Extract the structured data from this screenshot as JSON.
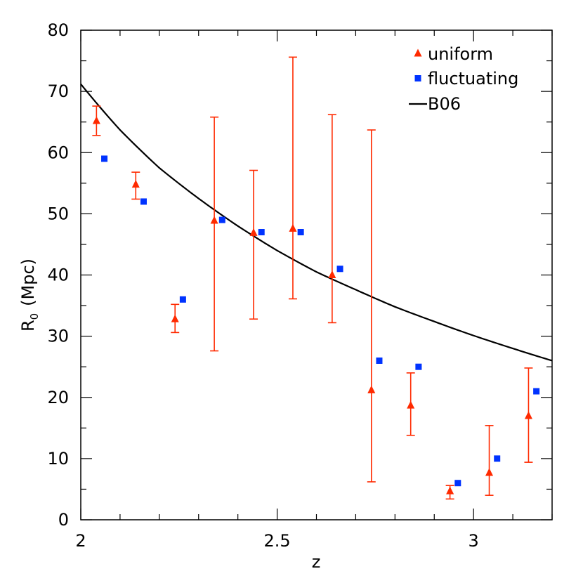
{
  "chart_data": {
    "type": "scatter",
    "title": "",
    "xlabel": "z",
    "ylabel": "R",
    "ylabel_subscript": "0",
    "ylabel_unit": "(Mpc)",
    "xlim": [
      2,
      3.2
    ],
    "ylim": [
      0,
      80
    ],
    "x_ticks": [
      {
        "value": 2,
        "label": "2"
      },
      {
        "value": 2.5,
        "label": "2.5"
      },
      {
        "value": 3,
        "label": "3"
      }
    ],
    "y_ticks": [
      {
        "value": 0,
        "label": "0"
      },
      {
        "value": 10,
        "label": "10"
      },
      {
        "value": 20,
        "label": "20"
      },
      {
        "value": 30,
        "label": "30"
      },
      {
        "value": 40,
        "label": "40"
      },
      {
        "value": 50,
        "label": "50"
      },
      {
        "value": 60,
        "label": "60"
      },
      {
        "value": 70,
        "label": "70"
      },
      {
        "value": 80,
        "label": "80"
      }
    ],
    "series": [
      {
        "name": "uniform",
        "marker": "triangle",
        "color": "#ff2a00",
        "points": [
          {
            "x": 2.04,
            "y": 65.2,
            "lo": 62.8,
            "hi": 67.6
          },
          {
            "x": 2.14,
            "y": 54.8,
            "lo": 52.4,
            "hi": 56.8
          },
          {
            "x": 2.24,
            "y": 32.8,
            "lo": 30.6,
            "hi": 35.2
          },
          {
            "x": 2.34,
            "y": 48.9,
            "lo": 27.6,
            "hi": 65.8
          },
          {
            "x": 2.44,
            "y": 46.9,
            "lo": 32.8,
            "hi": 57.1
          },
          {
            "x": 2.54,
            "y": 47.6,
            "lo": 36.1,
            "hi": 75.6
          },
          {
            "x": 2.64,
            "y": 40.0,
            "lo": 32.2,
            "hi": 66.2
          },
          {
            "x": 2.74,
            "y": 21.2,
            "lo": 6.2,
            "hi": 63.7
          },
          {
            "x": 2.84,
            "y": 18.7,
            "lo": 13.8,
            "hi": 24.0
          },
          {
            "x": 2.94,
            "y": 4.7,
            "lo": 3.4,
            "hi": 5.6
          },
          {
            "x": 3.04,
            "y": 7.7,
            "lo": 4.0,
            "hi": 15.4
          },
          {
            "x": 3.14,
            "y": 17.0,
            "lo": 9.4,
            "hi": 24.8
          }
        ]
      },
      {
        "name": "fluctuating",
        "marker": "square",
        "color": "#0033ff",
        "points": [
          {
            "x": 2.06,
            "y": 59.0
          },
          {
            "x": 2.16,
            "y": 52.0
          },
          {
            "x": 2.26,
            "y": 36.0
          },
          {
            "x": 2.36,
            "y": 49.0
          },
          {
            "x": 2.46,
            "y": 47.0
          },
          {
            "x": 2.56,
            "y": 47.0
          },
          {
            "x": 2.66,
            "y": 41.0
          },
          {
            "x": 2.76,
            "y": 26.0
          },
          {
            "x": 2.86,
            "y": 25.0
          },
          {
            "x": 2.96,
            "y": 6.0
          },
          {
            "x": 3.06,
            "y": 10.0
          },
          {
            "x": 3.16,
            "y": 21.0
          }
        ]
      },
      {
        "name": "B06",
        "marker": "line",
        "color": "#000000",
        "points": [
          {
            "x": 2.0,
            "y": 71.2
          },
          {
            "x": 2.1,
            "y": 63.7
          },
          {
            "x": 2.2,
            "y": 57.5
          },
          {
            "x": 2.3,
            "y": 52.5
          },
          {
            "x": 2.4,
            "y": 48.0
          },
          {
            "x": 2.5,
            "y": 44.0
          },
          {
            "x": 2.6,
            "y": 40.5
          },
          {
            "x": 2.7,
            "y": 37.6
          },
          {
            "x": 2.8,
            "y": 34.8
          },
          {
            "x": 2.9,
            "y": 32.4
          },
          {
            "x": 3.0,
            "y": 30.1
          },
          {
            "x": 3.1,
            "y": 28.0
          },
          {
            "x": 3.2,
            "y": 26.0
          }
        ]
      }
    ],
    "legend": {
      "position": "top-right",
      "entries": [
        {
          "label": "uniform",
          "marker": "triangle",
          "color": "#ff2a00"
        },
        {
          "label": "fluctuating",
          "marker": "square",
          "color": "#0033ff"
        },
        {
          "label": "B06",
          "marker": "line",
          "color": "#000000"
        }
      ]
    }
  }
}
